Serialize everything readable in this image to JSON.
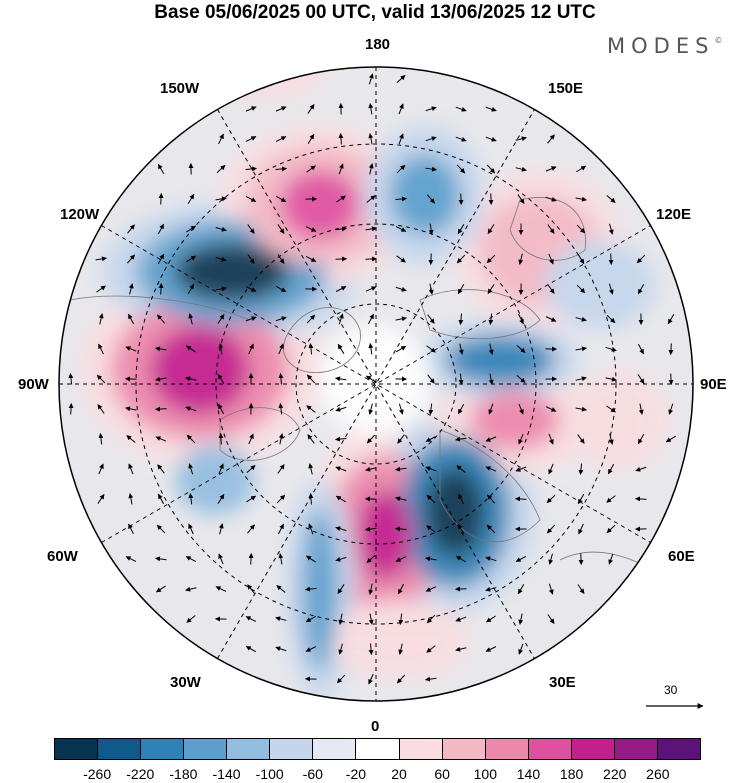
{
  "title": "Base 05/06/2025 00 UTC, valid 13/06/2025 12 UTC",
  "brand": {
    "text": "MODES",
    "mark": "©"
  },
  "longitude_labels": {
    "top": "180",
    "bottom": "0",
    "left": "90W",
    "right": "90E",
    "w150": "150W",
    "e150": "150E",
    "w120": "120W",
    "e120": "120E",
    "w60": "60W",
    "e60": "60E",
    "w30": "30W",
    "e30": "30E"
  },
  "reference_vector": {
    "label": "30"
  },
  "colorbar": {
    "colors": [
      "#08344f",
      "#0e5a8a",
      "#2d82b7",
      "#5a9fcd",
      "#93bde0",
      "#c5d6ec",
      "#e6e8f3",
      "#ffffff",
      "#f9dde0",
      "#f4b7c4",
      "#ee87ac",
      "#e050a0",
      "#c41f8c",
      "#951a86",
      "#5d1279"
    ],
    "tick_labels": [
      "-260",
      "-220",
      "-180",
      "-140",
      "-100",
      "-60",
      "-20",
      "20",
      "60",
      "100",
      "140",
      "180",
      "220",
      "260"
    ]
  }
}
